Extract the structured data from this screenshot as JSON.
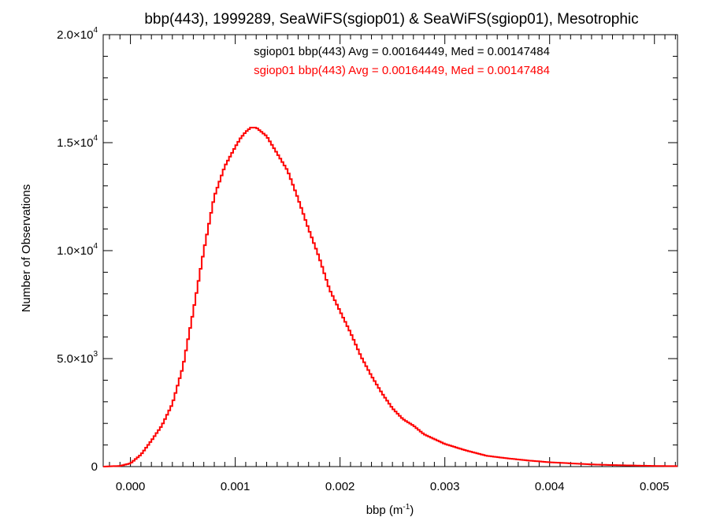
{
  "chart_data": {
    "type": "line",
    "title": "bbp(443), 1999289, SeaWiFS(sgiop01) & SeaWiFS(sgiop01), Mesotrophic",
    "xlabel": "bbp (m",
    "xlabel_sup": "-1",
    "xlabel_close": ")",
    "ylabel": "Number of Observations",
    "xlim": [
      -0.00026,
      0.00522
    ],
    "ylim": [
      0,
      20000
    ],
    "x_ticks": [
      {
        "value": 0.0,
        "label": "0.000"
      },
      {
        "value": 0.001,
        "label": "0.001"
      },
      {
        "value": 0.002,
        "label": "0.002"
      },
      {
        "value": 0.003,
        "label": "0.003"
      },
      {
        "value": 0.004,
        "label": "0.004"
      },
      {
        "value": 0.005,
        "label": "0.005"
      }
    ],
    "y_ticks": [
      {
        "value": 0,
        "mantissa": "0",
        "exponent": ""
      },
      {
        "value": 5000,
        "mantissa": "5.0×10",
        "exponent": "3"
      },
      {
        "value": 10000,
        "mantissa": "1.0×10",
        "exponent": "4"
      },
      {
        "value": 15000,
        "mantissa": "1.5×10",
        "exponent": "4"
      },
      {
        "value": 20000,
        "mantissa": "2.0×10",
        "exponent": "4"
      }
    ],
    "legend_placement": "top-center",
    "legend": [
      {
        "text": "sgiop01 bbp(443) Avg = 0.00164449, Med = 0.00147484",
        "color": "#000000"
      },
      {
        "text": "sgiop01 bbp(443) Avg = 0.00164449, Med = 0.00147484",
        "color": "#ff0000"
      }
    ],
    "series": [
      {
        "color": "#ff0000",
        "step": true,
        "x": [
          -0.00026,
          -0.0001,
          0.0,
          0.0001,
          0.0002,
          0.0003,
          0.0004,
          0.0005,
          0.0006,
          0.0007,
          0.0008,
          0.0009,
          0.001,
          0.00105,
          0.0011,
          0.00115,
          0.0012,
          0.00125,
          0.0013,
          0.0014,
          0.0015,
          0.0016,
          0.0017,
          0.0018,
          0.0019,
          0.002,
          0.0021,
          0.0022,
          0.0023,
          0.0024,
          0.0025,
          0.0026,
          0.0027,
          0.0028,
          0.003,
          0.0032,
          0.0034,
          0.0036,
          0.0038,
          0.004,
          0.0042,
          0.0044,
          0.0046,
          0.0048,
          0.005,
          0.00522
        ],
        "y": [
          0,
          30,
          150,
          550,
          1200,
          1900,
          2900,
          4600,
          7200,
          10000,
          12500,
          13900,
          14800,
          15200,
          15500,
          15700,
          15700,
          15500,
          15300,
          14500,
          13700,
          12400,
          11000,
          9700,
          8200,
          7200,
          6200,
          5100,
          4200,
          3400,
          2700,
          2200,
          1900,
          1500,
          1050,
          750,
          500,
          380,
          280,
          200,
          150,
          100,
          70,
          50,
          30,
          20
        ]
      }
    ]
  }
}
